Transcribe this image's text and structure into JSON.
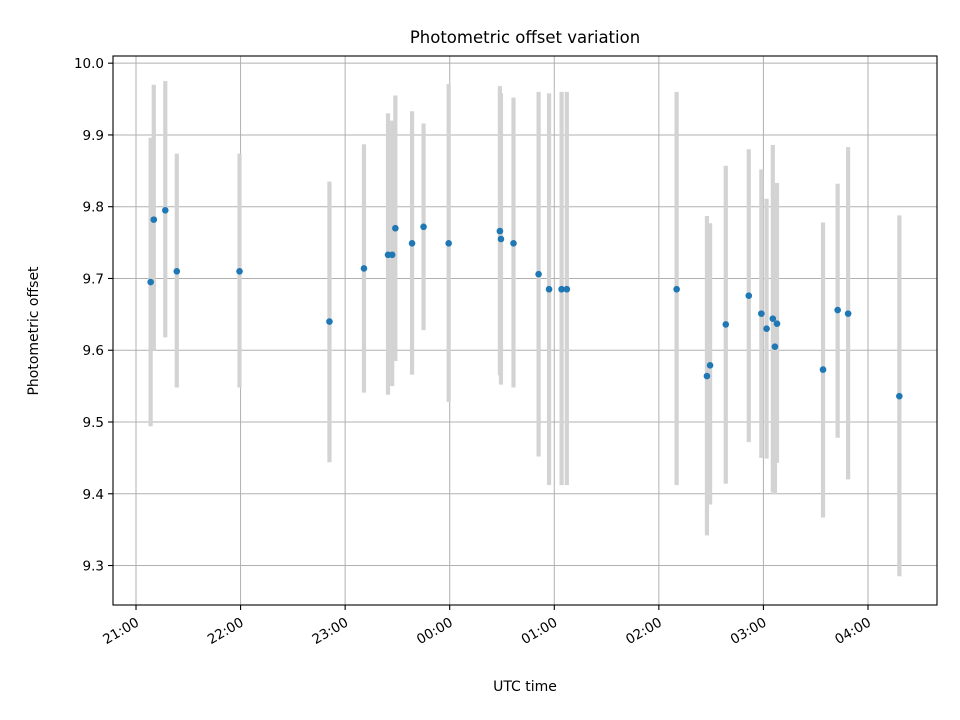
{
  "chart_data": {
    "type": "scatter",
    "title": "Photometric offset variation",
    "xlabel": "UTC time",
    "ylabel": "Photometric offset",
    "x_unit": "hours (UTC, values past midnight exceed 24)",
    "xlim": [
      20.78,
      28.66
    ],
    "ylim": [
      9.245,
      10.01
    ],
    "grid": true,
    "x_ticks": [
      {
        "value": 21,
        "label": "21:00"
      },
      {
        "value": 22,
        "label": "22:00"
      },
      {
        "value": 23,
        "label": "23:00"
      },
      {
        "value": 24,
        "label": "00:00"
      },
      {
        "value": 25,
        "label": "01:00"
      },
      {
        "value": 26,
        "label": "02:00"
      },
      {
        "value": 27,
        "label": "03:00"
      },
      {
        "value": 28,
        "label": "04:00"
      }
    ],
    "y_ticks": [
      {
        "value": 9.3,
        "label": "9.3"
      },
      {
        "value": 9.4,
        "label": "9.4"
      },
      {
        "value": 9.5,
        "label": "9.5"
      },
      {
        "value": 9.6,
        "label": "9.6"
      },
      {
        "value": 9.7,
        "label": "9.7"
      },
      {
        "value": 9.8,
        "label": "9.8"
      },
      {
        "value": 9.9,
        "label": "9.9"
      },
      {
        "value": 10.0,
        "label": "10.0"
      }
    ],
    "colors": {
      "points": "#1f77b4",
      "errorbars": "#d3d3d3",
      "grid": "#b0b0b0"
    },
    "points": [
      {
        "x": 21.14,
        "y": 9.695,
        "lo": 9.494,
        "hi": 9.896
      },
      {
        "x": 21.17,
        "y": 9.782,
        "lo": 9.6,
        "hi": 9.97
      },
      {
        "x": 21.28,
        "y": 9.795,
        "lo": 9.618,
        "hi": 9.975
      },
      {
        "x": 21.39,
        "y": 9.71,
        "lo": 9.548,
        "hi": 9.874
      },
      {
        "x": 21.99,
        "y": 9.71,
        "lo": 9.548,
        "hi": 9.874
      },
      {
        "x": 22.85,
        "y": 9.64,
        "lo": 9.444,
        "hi": 9.835
      },
      {
        "x": 23.18,
        "y": 9.714,
        "lo": 9.541,
        "hi": 9.887
      },
      {
        "x": 23.41,
        "y": 9.733,
        "lo": 9.538,
        "hi": 9.93
      },
      {
        "x": 23.45,
        "y": 9.733,
        "lo": 9.55,
        "hi": 9.92
      },
      {
        "x": 23.48,
        "y": 9.77,
        "lo": 9.585,
        "hi": 9.955
      },
      {
        "x": 23.64,
        "y": 9.749,
        "lo": 9.566,
        "hi": 9.933
      },
      {
        "x": 23.75,
        "y": 9.772,
        "lo": 9.628,
        "hi": 9.916
      },
      {
        "x": 23.99,
        "y": 9.749,
        "lo": 9.528,
        "hi": 9.971
      },
      {
        "x": 24.48,
        "y": 9.766,
        "lo": 9.565,
        "hi": 9.968
      },
      {
        "x": 24.49,
        "y": 9.755,
        "lo": 9.552,
        "hi": 9.958
      },
      {
        "x": 24.61,
        "y": 9.749,
        "lo": 9.548,
        "hi": 9.952
      },
      {
        "x": 24.85,
        "y": 9.706,
        "lo": 9.452,
        "hi": 9.96
      },
      {
        "x": 24.95,
        "y": 9.685,
        "lo": 9.412,
        "hi": 9.958
      },
      {
        "x": 25.07,
        "y": 9.685,
        "lo": 9.412,
        "hi": 9.96
      },
      {
        "x": 25.12,
        "y": 9.685,
        "lo": 9.412,
        "hi": 9.96
      },
      {
        "x": 26.17,
        "y": 9.685,
        "lo": 9.412,
        "hi": 9.96
      },
      {
        "x": 26.46,
        "y": 9.564,
        "lo": 9.342,
        "hi": 9.787
      },
      {
        "x": 26.49,
        "y": 9.579,
        "lo": 9.385,
        "hi": 9.777
      },
      {
        "x": 26.64,
        "y": 9.636,
        "lo": 9.414,
        "hi": 9.857
      },
      {
        "x": 26.86,
        "y": 9.676,
        "lo": 9.472,
        "hi": 9.88
      },
      {
        "x": 26.98,
        "y": 9.651,
        "lo": 9.45,
        "hi": 9.852
      },
      {
        "x": 27.03,
        "y": 9.63,
        "lo": 9.449,
        "hi": 9.811
      },
      {
        "x": 27.09,
        "y": 9.644,
        "lo": 9.402,
        "hi": 9.886
      },
      {
        "x": 27.11,
        "y": 9.605,
        "lo": 9.399,
        "hi": 9.812
      },
      {
        "x": 27.13,
        "y": 9.637,
        "lo": 9.443,
        "hi": 9.833
      },
      {
        "x": 27.57,
        "y": 9.573,
        "lo": 9.367,
        "hi": 9.778
      },
      {
        "x": 27.71,
        "y": 9.656,
        "lo": 9.478,
        "hi": 9.832
      },
      {
        "x": 27.81,
        "y": 9.651,
        "lo": 9.42,
        "hi": 9.883
      },
      {
        "x": 28.3,
        "y": 9.536,
        "lo": 9.285,
        "hi": 9.788
      }
    ]
  }
}
